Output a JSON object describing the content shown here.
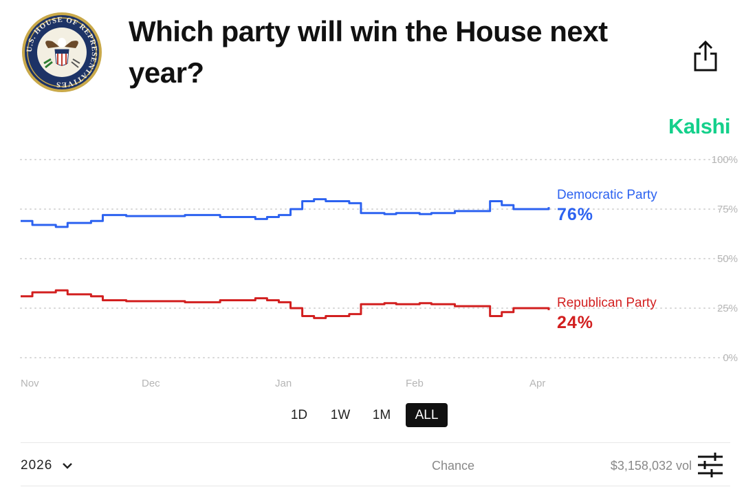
{
  "header": {
    "title": "Which party will win the House next year?",
    "seal_text": "U.S. HOUSE OF REPRESENTATIVES",
    "brand": "Kalshi",
    "share_icon": "share-icon"
  },
  "colors": {
    "democratic": "#2c62f0",
    "republican": "#d21f1f",
    "brand": "#14d08b",
    "grid": "#d6d6d6"
  },
  "chart_data": {
    "type": "line",
    "ylim": [
      0,
      100
    ],
    "yticks": [
      "100%",
      "75%",
      "50%",
      "25%",
      "0%"
    ],
    "xticks": [
      "Nov",
      "Dec",
      "Jan",
      "Feb",
      "Apr"
    ],
    "x_range": [
      "Nov",
      "Apr"
    ],
    "series": [
      {
        "name": "Democratic Party",
        "current": "76%",
        "values": [
          69,
          67,
          67,
          66,
          68,
          68,
          69,
          72,
          72,
          71.5,
          71.5,
          71.5,
          71.5,
          71.5,
          72,
          72,
          72,
          71,
          71,
          71,
          70,
          71,
          72,
          75,
          79,
          80,
          79,
          79,
          78,
          73,
          73,
          72.5,
          73,
          73,
          72.5,
          73,
          73,
          74,
          74,
          74,
          79,
          77,
          75,
          75,
          75,
          76
        ]
      },
      {
        "name": "Republican Party",
        "current": "24%",
        "values": [
          31,
          33,
          33,
          34,
          32,
          32,
          31,
          29,
          29,
          28.5,
          28.5,
          28.5,
          28.5,
          28.5,
          28,
          28,
          28,
          29,
          29,
          29,
          30,
          29,
          28,
          25,
          21,
          20,
          21,
          21,
          22,
          27,
          27,
          27.5,
          27,
          27,
          27.5,
          27,
          27,
          26,
          26,
          26,
          21,
          23,
          25,
          25,
          25,
          24
        ]
      }
    ]
  },
  "time_ranges": {
    "items": [
      "1D",
      "1W",
      "1M",
      "ALL"
    ],
    "selected": "ALL"
  },
  "footer": {
    "year": "2026",
    "chance_label": "Chance",
    "volume": "$3,158,032 vol"
  }
}
